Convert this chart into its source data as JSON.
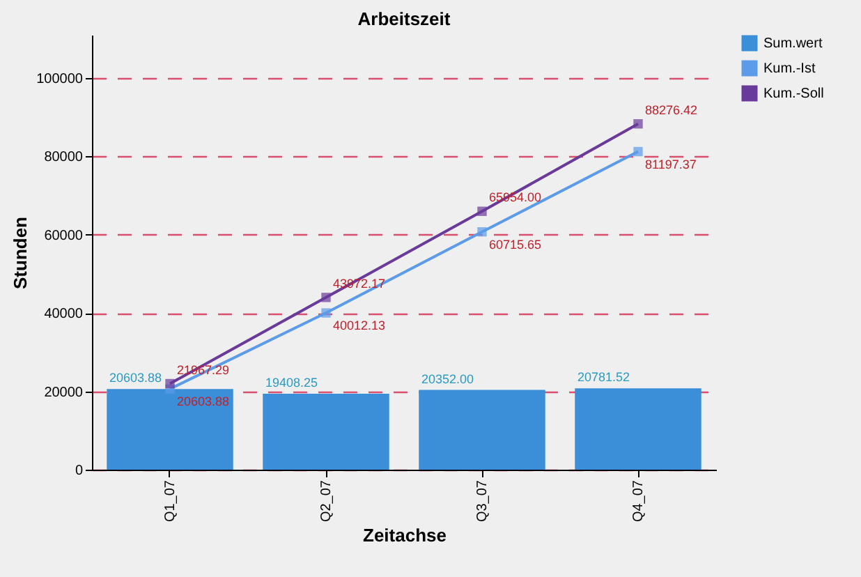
{
  "chart_data": {
    "type": "bar",
    "title": "Arbeitszeit",
    "xlabel": "Zeitachse",
    "ylabel": "Stunden",
    "categories": [
      "Q1_07",
      "Q2_07",
      "Q3_07",
      "Q4_07"
    ],
    "series": [
      {
        "name": "Sum.wert",
        "color": "#3a8fd8",
        "values": [
          20603.88,
          19408.25,
          20352.0,
          20781.52
        ],
        "value_labels": [
          "20603.88",
          "19408.25",
          "20352.00",
          "20781.52"
        ]
      },
      {
        "name": "Kum.-Ist",
        "type": "line",
        "color": "#5b9be8",
        "values": [
          20603.88,
          40012.13,
          60715.65,
          81197.37
        ],
        "value_labels": [
          "20603.88",
          "40012.13",
          "60715.65",
          "81197.37"
        ]
      },
      {
        "name": "Kum.-Soll",
        "type": "line",
        "color": "#6a3a9a",
        "values": [
          21967.29,
          43972.17,
          65954.0,
          88276.42
        ],
        "value_labels": [
          "21967.29",
          "43972.17",
          "65954.00",
          "88276.42"
        ]
      }
    ],
    "ylim": [
      0,
      111000
    ],
    "yticks": [
      0,
      20000,
      40000,
      60000,
      80000,
      100000
    ],
    "grid": "y",
    "legend": "right",
    "marker": "square",
    "line_style": "solid"
  }
}
